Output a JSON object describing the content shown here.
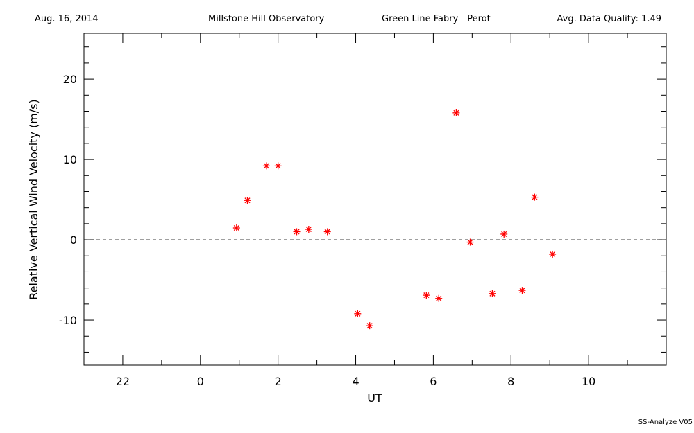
{
  "chart_data": {
    "type": "scatter",
    "header": [
      "Aug. 16, 2014",
      "Millstone Hill Observatory",
      "Green Line Fabry—Perot",
      "Avg. Data Quality: 1.49"
    ],
    "footer": "SS-Analyze V05",
    "xlabel": "UT",
    "ylabel": "Relative Vertical Wind Velocity (m/s)",
    "xlim": [
      -3,
      12
    ],
    "ylim": [
      -15.6,
      25.7
    ],
    "xticks": [
      {
        "value": -2,
        "label": "22"
      },
      0,
      2,
      4,
      6,
      8,
      10
    ],
    "xminorticks": [
      -1,
      1,
      3,
      5,
      7,
      9,
      11
    ],
    "yticks": [
      -10,
      0,
      10,
      20
    ],
    "yminorticks": [
      -14,
      -12,
      -8,
      -6,
      -4,
      -2,
      2,
      4,
      6,
      8,
      12,
      14,
      16,
      18,
      22,
      24
    ],
    "hline": 0,
    "color": "#ff0000",
    "x": [
      0.93,
      1.21,
      1.7,
      2.0,
      2.48,
      2.79,
      3.27,
      4.05,
      4.36,
      5.82,
      6.14,
      6.59,
      6.95,
      7.52,
      7.82,
      8.29,
      8.61,
      9.07
    ],
    "values": [
      1.47,
      4.9,
      9.2,
      9.2,
      1.0,
      1.3,
      1.0,
      -9.2,
      -10.7,
      -6.9,
      -7.3,
      15.8,
      -0.3,
      -6.7,
      0.7,
      -6.3,
      5.3,
      -1.8
    ]
  }
}
